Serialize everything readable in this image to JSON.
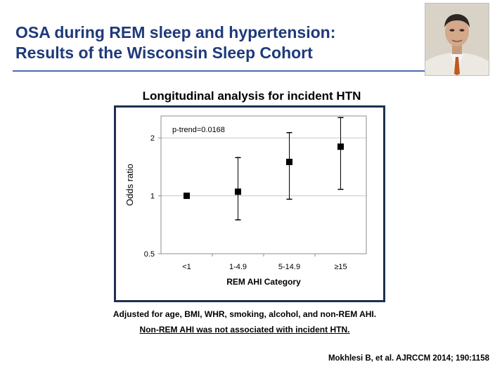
{
  "slide": {
    "title_line1": "OSA during REM sleep and hypertension:",
    "title_line2": "Results of the Wisconsin Sleep Cohort",
    "subtitle": "Longitudinal analysis for incident HTN",
    "note1": "Adjusted for age, BMI, WHR, smoking, alcohol, and non-REM AHI.",
    "note2": "Non-REM AHI was not associated with incident HTN.",
    "citation": "Mokhlesi B, et al. AJRCCM 2014; 190:1158"
  },
  "colors": {
    "title": "#1f3a7a",
    "rule": "#4a6cb3",
    "frame": "#1f2f52"
  },
  "chart_data": {
    "type": "scatter",
    "xlabel": "REM AHI Category",
    "ylabel": "Odds ratio",
    "yscale": "log",
    "ylim": [
      0.5,
      2.6
    ],
    "yticks": [
      0.5,
      1,
      2
    ],
    "ytick_labels": [
      "0.5",
      "1",
      "2"
    ],
    "categories": [
      "<1",
      "1-4.9",
      "5-14.9",
      "≥15"
    ],
    "values": [
      1.0,
      1.05,
      1.5,
      1.8
    ],
    "ci_lower": [
      null,
      0.75,
      0.96,
      1.08
    ],
    "ci_upper": [
      null,
      1.58,
      2.13,
      2.55
    ],
    "annotation": "p-trend=0.0168",
    "grid": "horizontal"
  }
}
